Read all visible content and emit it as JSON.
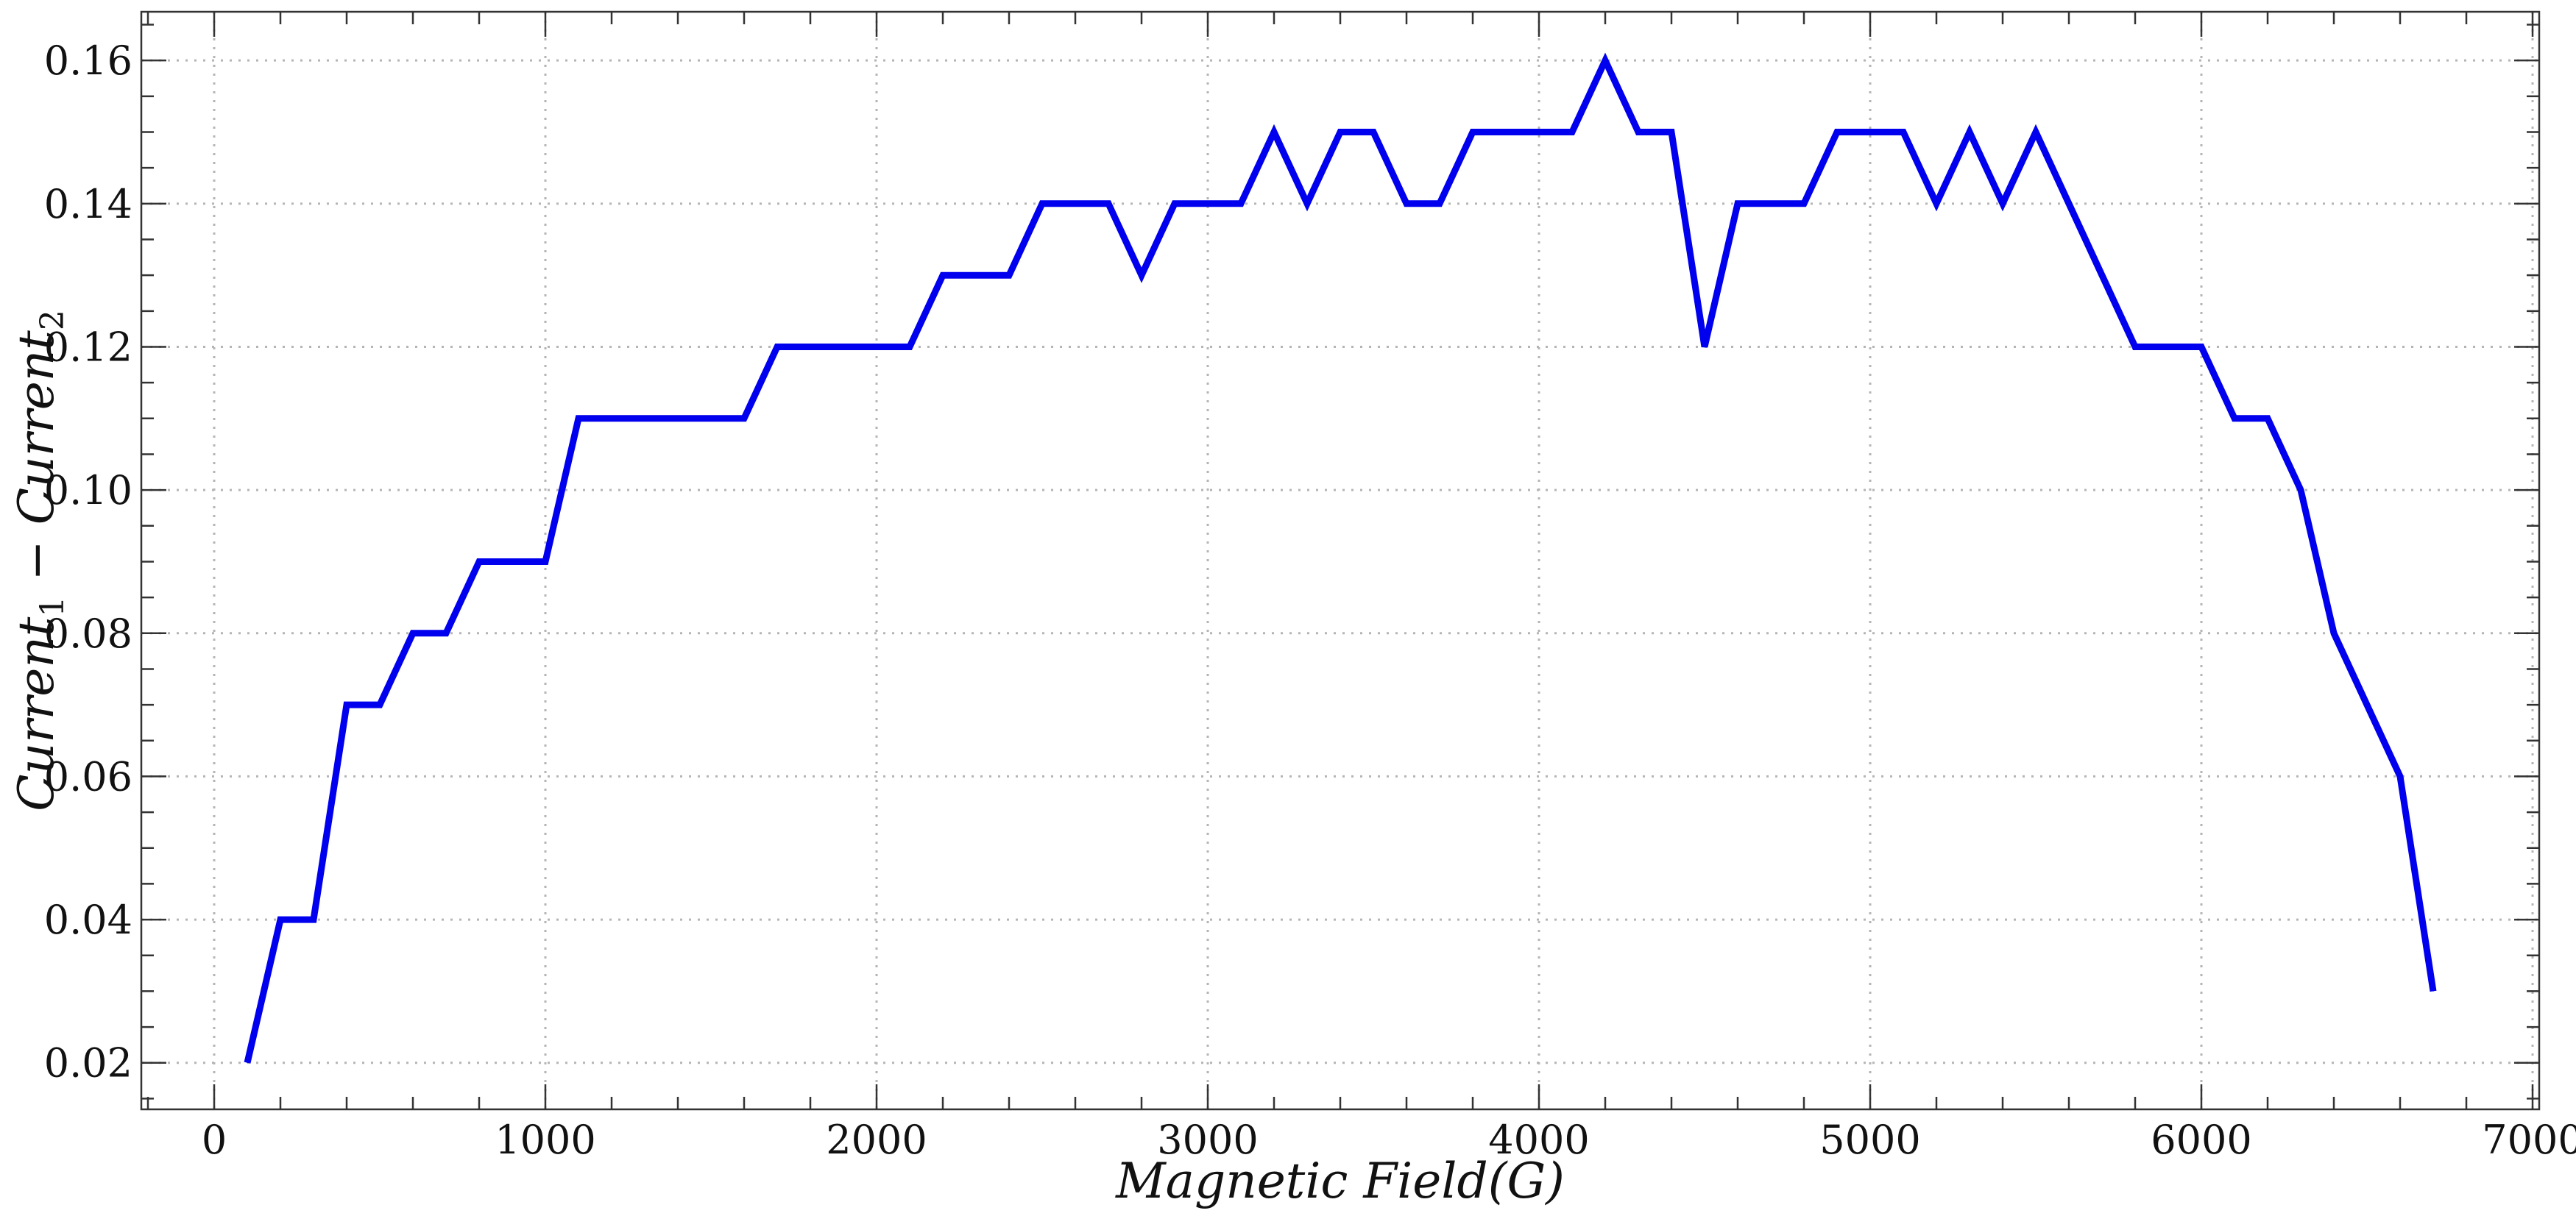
{
  "chart_data": {
    "type": "line",
    "title": "",
    "xlabel": "Magnetic Field(G)",
    "ylabel_parts": [
      {
        "text": "Current",
        "sub": false
      },
      {
        "text": "1",
        "sub": true
      },
      {
        "text": " − Current",
        "sub": false
      },
      {
        "text": "2",
        "sub": true
      }
    ],
    "xlim": [
      -220,
      7020
    ],
    "ylim": [
      0.0135,
      0.1668
    ],
    "grid": true,
    "x_ticks": [
      0,
      1000,
      2000,
      3000,
      4000,
      5000,
      6000,
      7000
    ],
    "x_tick_labels": [
      "0",
      "1000",
      "2000",
      "3000",
      "4000",
      "5000",
      "6000",
      "7000"
    ],
    "y_ticks": [
      0.02,
      0.04,
      0.06,
      0.08,
      0.1,
      0.12,
      0.14,
      0.16
    ],
    "y_tick_labels": [
      "0.02",
      "0.04",
      "0.06",
      "0.08",
      "0.10",
      "0.12",
      "0.14",
      "0.16"
    ],
    "x_minor_step": 200,
    "y_minor_step": 0.005,
    "series": [
      {
        "name": "Current1 - Current2",
        "color": "#0000ee",
        "x": [
          100,
          200,
          300,
          400,
          500,
          600,
          700,
          800,
          900,
          1000,
          1100,
          1200,
          1300,
          1400,
          1500,
          1600,
          1700,
          1800,
          1900,
          2000,
          2100,
          2200,
          2300,
          2400,
          2500,
          2600,
          2700,
          2800,
          2900,
          3000,
          3100,
          3200,
          3300,
          3400,
          3500,
          3600,
          3700,
          3800,
          3900,
          4000,
          4100,
          4200,
          4300,
          4400,
          4500,
          4600,
          4700,
          4800,
          4900,
          5000,
          5100,
          5200,
          5300,
          5400,
          5500,
          5600,
          5700,
          5800,
          5900,
          6000,
          6100,
          6200,
          6300,
          6400,
          6500,
          6600,
          6700
        ],
        "values": [
          0.02,
          0.04,
          0.04,
          0.07,
          0.07,
          0.08,
          0.08,
          0.09,
          0.09,
          0.09,
          0.11,
          0.11,
          0.11,
          0.11,
          0.11,
          0.11,
          0.12,
          0.12,
          0.12,
          0.12,
          0.12,
          0.13,
          0.13,
          0.13,
          0.14,
          0.14,
          0.14,
          0.13,
          0.14,
          0.14,
          0.14,
          0.15,
          0.14,
          0.15,
          0.15,
          0.14,
          0.14,
          0.15,
          0.15,
          0.15,
          0.15,
          0.16,
          0.15,
          0.15,
          0.12,
          0.14,
          0.14,
          0.14,
          0.15,
          0.15,
          0.15,
          0.14,
          0.15,
          0.14,
          0.15,
          0.14,
          0.13,
          0.12,
          0.12,
          0.12,
          0.11,
          0.11,
          0.1,
          0.08,
          0.07,
          0.06,
          0.03
        ]
      }
    ]
  }
}
